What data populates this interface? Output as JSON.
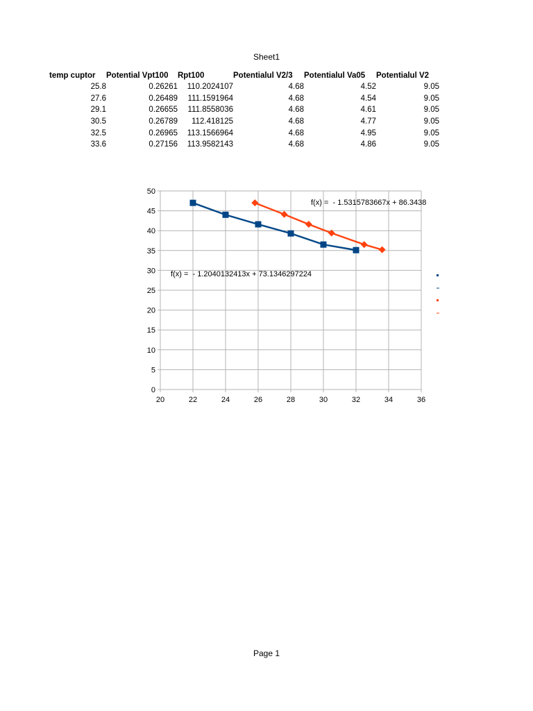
{
  "sheet": {
    "title": "Sheet1",
    "footer": "Page 1"
  },
  "table": {
    "headers": [
      "temp cuptor",
      "Potential Vpt100",
      "Rpt100",
      "Potentialul V2/3",
      "Potentialul Va05",
      "Potentialul V2"
    ],
    "rows": [
      [
        "25.8",
        "0.26261",
        "110.2024107",
        "4.68",
        "4.52",
        "9.05"
      ],
      [
        "27.6",
        "0.26489",
        "111.1591964",
        "4.68",
        "4.54",
        "9.05"
      ],
      [
        "29.1",
        "0.26655",
        "111.8558036",
        "4.68",
        "4.61",
        "9.05"
      ],
      [
        "30.5",
        "0.26789",
        "112.418125",
        "4.68",
        "4.77",
        "9.05"
      ],
      [
        "32.5",
        "0.26965",
        "113.1566964",
        "4.68",
        "4.95",
        "9.05"
      ],
      [
        "33.6",
        "0.27156",
        "113.9582143",
        "4.68",
        "4.86",
        "9.05"
      ]
    ]
  },
  "chart_data": {
    "type": "scatter",
    "xlim": [
      20,
      36
    ],
    "ylim": [
      0,
      50
    ],
    "xticks": [
      "20",
      "22",
      "24",
      "26",
      "28",
      "30",
      "32",
      "34",
      "36"
    ],
    "yticks": [
      "0",
      "5",
      "10",
      "15",
      "20",
      "25",
      "30",
      "35",
      "40",
      "45",
      "50"
    ],
    "grid": true,
    "legend_position": "right",
    "series": [
      {
        "color": "#004586",
        "marker": "square",
        "x": [
          22,
          24,
          26,
          28,
          30,
          32
        ],
        "y": [
          47.0,
          44.0,
          41.6,
          39.3,
          36.5,
          35.1
        ],
        "trendline": {
          "color": "#004586",
          "label": "f(x) =  - 1.2040132413x + 73.1346297224"
        }
      },
      {
        "color": "#ff420e",
        "marker": "diamond",
        "x": [
          25.8,
          27.6,
          29.1,
          30.5,
          32.5,
          33.6
        ],
        "y": [
          47.0,
          44.1,
          41.6,
          39.4,
          36.5,
          35.2
        ],
        "trendline": {
          "color": "#ff420e",
          "label": "f(x) =  - 1.5315783667x + 86.3438"
        }
      }
    ]
  }
}
